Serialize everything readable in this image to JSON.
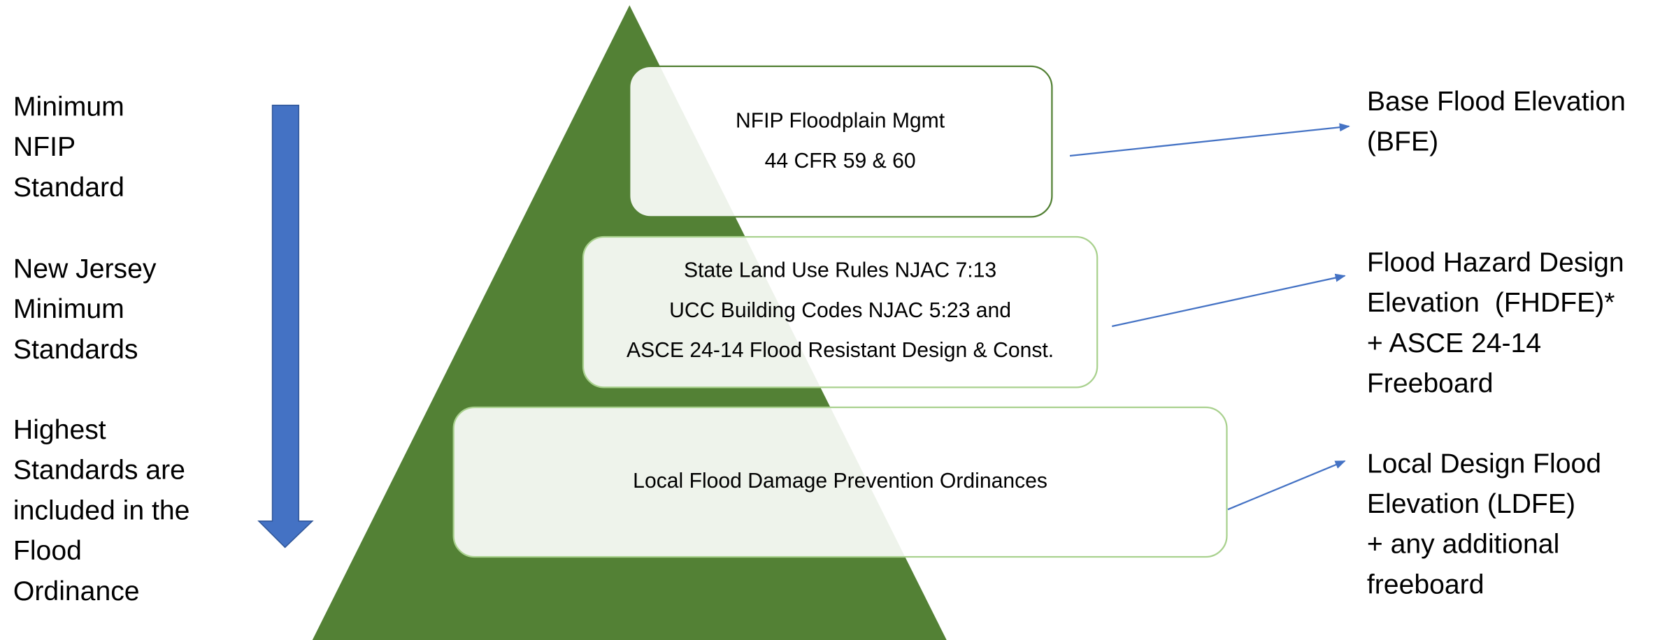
{
  "left_labels": [
    {
      "lines": [
        "Minimum",
        "NFIP",
        "Standard"
      ]
    },
    {
      "lines": [
        "New Jersey",
        "Minimum",
        "Standards"
      ]
    },
    {
      "lines": [
        "Highest",
        "Standards are",
        "included in the",
        "Flood",
        "Ordinance"
      ]
    }
  ],
  "boxes": [
    {
      "lines": [
        "NFIP Floodplain Mgmt",
        "44 CFR 59 & 60"
      ]
    },
    {
      "lines": [
        "State Land Use Rules NJAC 7:13",
        "UCC Building Codes NJAC 5:23 and",
        "ASCE 24-14 Flood Resistant Design & Const."
      ]
    },
    {
      "lines": [
        "Local Flood Damage Prevention Ordinances"
      ]
    }
  ],
  "right_labels": [
    {
      "lines": [
        "Base Flood Elevation",
        "(BFE)"
      ]
    },
    {
      "lines": [
        "Flood Hazard Design",
        "Elevation  (FHDFE)*",
        "+ ASCE 24-14",
        "Freeboard"
      ]
    },
    {
      "lines": [
        "Local Design Flood",
        "Elevation (LDFE)",
        "+ any additional",
        "freeboard"
      ]
    }
  ]
}
